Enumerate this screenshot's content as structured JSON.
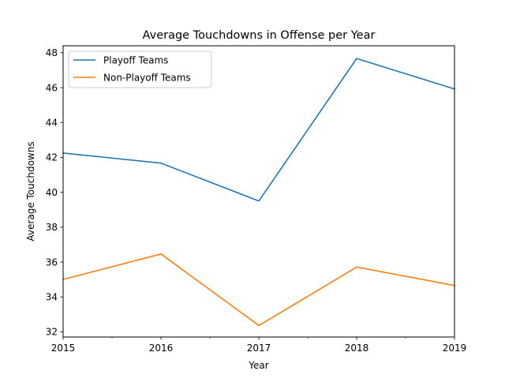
{
  "chart_data": {
    "type": "line",
    "title": "Average Touchdowns in Offense per Year",
    "xlabel": "Year",
    "ylabel": "Average Touchdowns",
    "x": [
      2015,
      2016,
      2017,
      2018,
      2019
    ],
    "x_ticks": [
      "2015",
      "2016",
      "2017",
      "2018",
      "2019"
    ],
    "x_minor_ticks": [
      2015.5,
      2016.5,
      2017.5,
      2018.5
    ],
    "y_ticks": [
      "32",
      "34",
      "36",
      "38",
      "40",
      "42",
      "44",
      "46",
      "48"
    ],
    "xlim": [
      2015,
      2019
    ],
    "ylim": [
      31.7,
      48.4
    ],
    "grid": false,
    "legend_position": "top-left",
    "series": [
      {
        "name": "Playoff Teams",
        "color": "#1f77b4",
        "values": [
          42.25,
          41.67,
          39.5,
          47.67,
          45.92
        ]
      },
      {
        "name": "Non-Playoff Teams",
        "color": "#ff7f0e",
        "values": [
          35.0,
          36.46,
          32.36,
          35.71,
          34.65
        ]
      }
    ]
  }
}
